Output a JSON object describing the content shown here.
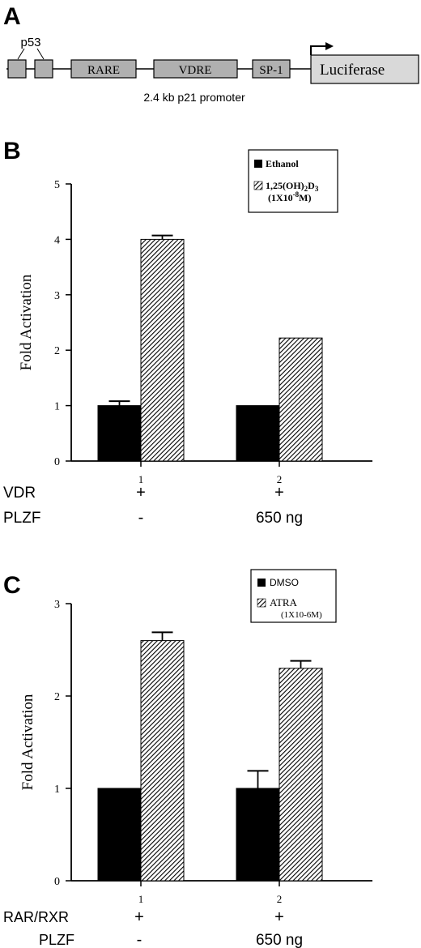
{
  "panels": {
    "A": {
      "letter": "A",
      "p53": "p53",
      "rare": "RARE",
      "vdre": "VDRE",
      "sp1": "SP-1",
      "luciferase": "Luciferase",
      "caption": "2.4 kb p21 promoter"
    },
    "B": {
      "letter": "B",
      "legend": {
        "ethanol": "Ethanol",
        "treat_prefix": "1,25(OH)",
        "treat_sub2": "2",
        "treat_d": "D",
        "treat_sub3": "3",
        "conc_prefix": "(1X10",
        "conc_sup": "-8",
        "conc_suffix": "M)"
      },
      "rows": [
        {
          "label": "VDR",
          "values": [
            "+",
            "+"
          ]
        },
        {
          "label": "PLZF",
          "values": [
            "-",
            "650 ng"
          ]
        }
      ]
    },
    "C": {
      "letter": "C",
      "legend": {
        "dmso": "DMSO",
        "atra": "ATRA",
        "atra_conc": "(1X10-6M)"
      },
      "rows": [
        {
          "label": "RAR/RXR",
          "values": [
            "+",
            "+"
          ]
        },
        {
          "label": "PLZF",
          "values": [
            "-",
            "650 ng"
          ]
        }
      ]
    }
  },
  "chart_data": [
    {
      "type": "bar",
      "categories": [
        "1",
        "2"
      ],
      "ylabel": "Fold Activation",
      "ylim": [
        0,
        5
      ],
      "yticks": [
        "0",
        "1",
        "2",
        "3",
        "4",
        "5"
      ],
      "series": [
        {
          "name": "Ethanol",
          "values": [
            1.0,
            1.0
          ],
          "errors": [
            0.08,
            0.0
          ],
          "fill": "solid"
        },
        {
          "name": "1,25(OH)2D3 (1X10-8M)",
          "values": [
            4.0,
            2.22
          ],
          "errors": [
            0.07,
            0.0
          ],
          "fill": "hatch"
        }
      ],
      "legend": "top-right"
    },
    {
      "type": "bar",
      "categories": [
        "1",
        "2"
      ],
      "ylabel": "Fold Activation",
      "ylim": [
        0,
        3
      ],
      "yticks": [
        "0",
        "1",
        "2",
        "3"
      ],
      "series": [
        {
          "name": "DMSO",
          "values": [
            1.0,
            1.0
          ],
          "errors": [
            0.0,
            0.19
          ],
          "fill": "solid"
        },
        {
          "name": "ATRA (1X10-6M)",
          "values": [
            2.6,
            2.3
          ],
          "errors": [
            0.09,
            0.08
          ],
          "fill": "hatch"
        }
      ],
      "legend": "top-right"
    }
  ]
}
